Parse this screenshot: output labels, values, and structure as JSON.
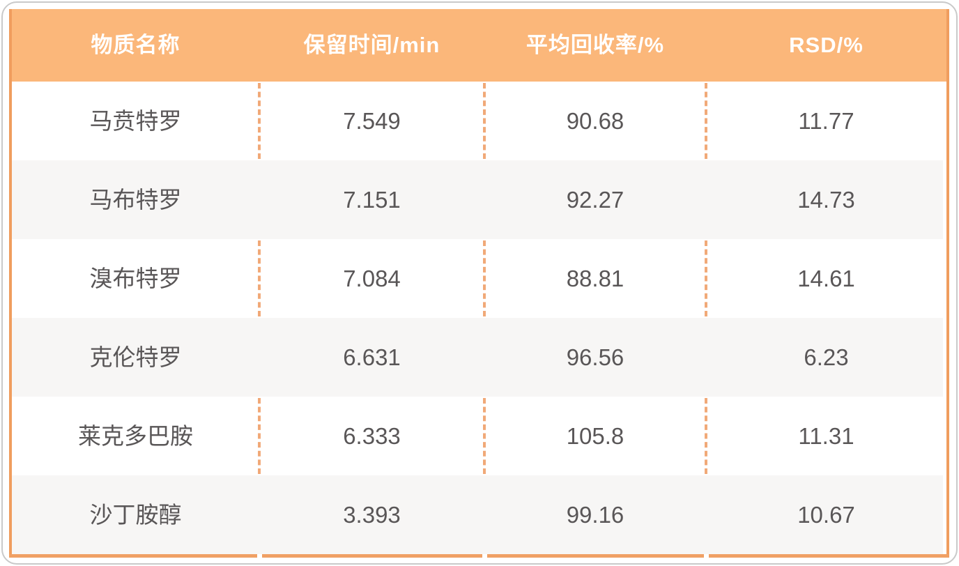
{
  "table": {
    "header": {
      "substance": "物质名称",
      "retention": "保留时间/min",
      "recovery": "平均回收率/%",
      "rsd": "RSD/%"
    },
    "rows": [
      {
        "substance": "马贲特罗",
        "retention": "7.549",
        "recovery": "90.68",
        "rsd": "11.77"
      },
      {
        "substance": "马布特罗",
        "retention": "7.151",
        "recovery": "92.27",
        "rsd": "14.73"
      },
      {
        "substance": "溴布特罗",
        "retention": "7.084",
        "recovery": "88.81",
        "rsd": "14.61"
      },
      {
        "substance": "克伦特罗",
        "retention": "6.631",
        "recovery": "96.56",
        "rsd": "6.23"
      },
      {
        "substance": "莱克多巴胺",
        "retention": "6.333",
        "recovery": "105.8",
        "rsd": "11.31"
      },
      {
        "substance": "沙丁胺醇",
        "retention": "3.393",
        "recovery": "99.16",
        "rsd": "10.67"
      }
    ]
  },
  "colors": {
    "header_bg": "#FBB77A",
    "border_solid": "#F09D5E",
    "divider_dashed": "#F1A978",
    "bottom_rule": "#F0A064",
    "row_alt_bg": "#F7F6F5",
    "header_text": "#FFFFFF",
    "body_text": "#595657",
    "outer_frame": "#C9C9C9"
  },
  "chart_data": {
    "type": "table",
    "title": "",
    "columns": [
      "物质名称",
      "保留时间/min",
      "平均回收率/%",
      "RSD/%"
    ],
    "rows": [
      [
        "马贲特罗",
        7.549,
        90.68,
        11.77
      ],
      [
        "马布特罗",
        7.151,
        92.27,
        14.73
      ],
      [
        "溴布特罗",
        7.084,
        88.81,
        14.61
      ],
      [
        "克伦特罗",
        6.631,
        96.56,
        6.23
      ],
      [
        "莱克多巴胺",
        6.333,
        105.8,
        11.31
      ],
      [
        "沙丁胺醇",
        3.393,
        99.16,
        10.67
      ]
    ]
  }
}
